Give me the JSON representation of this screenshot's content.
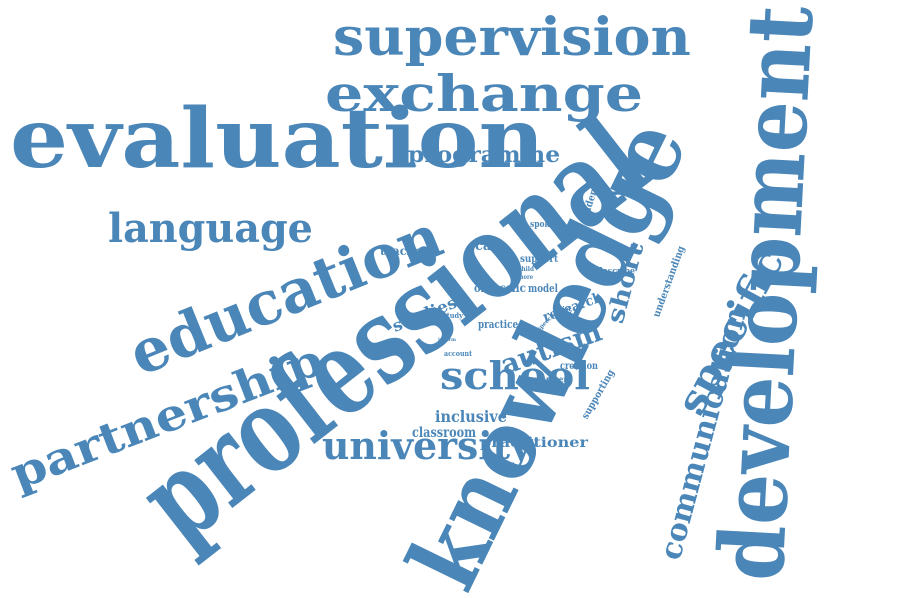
{
  "color": "#4a86b8",
  "words": {
    "professional": "professional",
    "knowledge": "knowledge",
    "development": "development",
    "evaluation": "evaluation",
    "supervision": "supervision",
    "exchange": "exchange",
    "education": "education",
    "partnership": "partnership",
    "language": "language",
    "school": "school",
    "university": "university",
    "autism": "autism",
    "programme": "programme",
    "specific": "specific",
    "communication": "communication",
    "short": "short",
    "studies": "studies",
    "research": "research",
    "inclusive": "inclusive",
    "classroom": "classroom",
    "practitioner": "practitioner",
    "teacher": "teacher",
    "case": "case",
    "support": "support",
    "oral": "oral",
    "sslic": "sslic",
    "model": "model",
    "practice": "practice",
    "evidence": "evidence",
    "spoken": "spoken",
    "understanding": "understanding",
    "describe": "describe",
    "creation": "creation",
    "researcher": "researcher",
    "supporting": "supporting",
    "account": "account",
    "study": "study",
    "author": "author",
    "child": "child",
    "more": "more",
    "speech": "speech",
    "brief": "brief",
    "inform": "inform"
  }
}
